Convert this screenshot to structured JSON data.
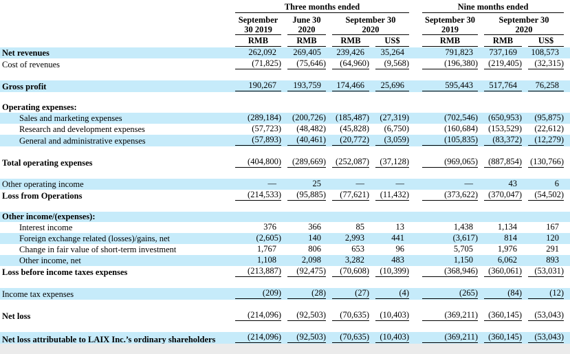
{
  "colors": {
    "row_highlight": "#c6ebfa",
    "rule": "#000000",
    "footer_strip": "#ebebeb",
    "text": "#000000"
  },
  "table": {
    "groups": [
      {
        "label": "Three months ended",
        "span": 4
      },
      {
        "label": "Nine months ended",
        "span": 3
      }
    ],
    "date_columns": [
      {
        "lines": [
          "September",
          "30 2019"
        ],
        "span": 1,
        "group": 0
      },
      {
        "lines": [
          "June 30",
          "2020"
        ],
        "span": 1,
        "group": 0
      },
      {
        "lines": [
          "September 30",
          "2020"
        ],
        "span": 2,
        "group": 0
      },
      {
        "lines": [
          "September 30",
          "2019"
        ],
        "span": 1,
        "group": 1
      },
      {
        "lines": [
          "September 30",
          "2020"
        ],
        "span": 2,
        "group": 1
      }
    ],
    "unit_row": [
      "RMB",
      "RMB",
      "RMB",
      "US$",
      "RMB",
      "RMB",
      "US$"
    ],
    "rows": [
      {
        "label": "Net revenues",
        "bold": true,
        "indent": false,
        "highlight": true,
        "underline": "none",
        "values": [
          "262,092",
          "269,405",
          "239,426",
          "35,264",
          "791,823",
          "737,169",
          "108,573"
        ]
      },
      {
        "label": "Cost of revenues",
        "bold": false,
        "indent": false,
        "highlight": false,
        "underline": "single",
        "values": [
          "(71,825)",
          "(75,646)",
          "(64,960)",
          "(9,568)",
          "(196,380)",
          "(219,405)",
          "(32,315)"
        ]
      },
      {
        "spacer": true
      },
      {
        "label": "Gross profit",
        "bold": true,
        "indent": false,
        "highlight": true,
        "underline": "single",
        "values": [
          "190,267",
          "193,759",
          "174,466",
          "25,696",
          "595,443",
          "517,764",
          "76,258"
        ]
      },
      {
        "spacer": true
      },
      {
        "label": "Operating expenses:",
        "bold": true,
        "indent": false,
        "highlight": false,
        "underline": "none",
        "values": null
      },
      {
        "label": "Sales and marketing expenses",
        "bold": false,
        "indent": true,
        "highlight": true,
        "underline": "none",
        "values": [
          "(289,184)",
          "(200,726)",
          "(185,487)",
          "(27,319)",
          "(702,546)",
          "(650,953)",
          "(95,875)"
        ]
      },
      {
        "label": "Research and development expenses",
        "bold": false,
        "indent": true,
        "highlight": false,
        "underline": "none",
        "values": [
          "(57,723)",
          "(48,482)",
          "(45,828)",
          "(6,750)",
          "(160,684)",
          "(153,529)",
          "(22,612)"
        ]
      },
      {
        "label": "General and administrative expenses",
        "bold": false,
        "indent": true,
        "highlight": true,
        "underline": "single",
        "values": [
          "(57,893)",
          "(40,461)",
          "(20,772)",
          "(3,059)",
          "(105,835)",
          "(83,372)",
          "(12,279)"
        ]
      },
      {
        "spacer": true
      },
      {
        "label": "Total operating expenses",
        "bold": true,
        "indent": false,
        "highlight": false,
        "underline": "single",
        "values": [
          "(404,800)",
          "(289,669)",
          "(252,087)",
          "(37,128)",
          "(969,065)",
          "(887,854)",
          "(130,766)"
        ]
      },
      {
        "spacer": true
      },
      {
        "label": "Other operating income",
        "bold": false,
        "indent": false,
        "highlight": true,
        "underline": "none",
        "values": [
          "—",
          "25",
          "—",
          "—",
          "—",
          "43",
          "6"
        ]
      },
      {
        "label": "Loss from Operations",
        "bold": true,
        "indent": false,
        "highlight": false,
        "underline": "single",
        "values": [
          "(214,533)",
          "(95,885)",
          "(77,621)",
          "(11,432)",
          "(373,622)",
          "(370,047)",
          "(54,502)"
        ]
      },
      {
        "spacer": true
      },
      {
        "label": "Other income/(expenses):",
        "bold": true,
        "indent": false,
        "highlight": true,
        "underline": "none",
        "values": null
      },
      {
        "label": "Interest income",
        "bold": false,
        "indent": true,
        "highlight": false,
        "underline": "none",
        "values": [
          "376",
          "366",
          "85",
          "13",
          "1,438",
          "1,134",
          "167"
        ]
      },
      {
        "label": "Foreign exchange related (losses)/gains, net",
        "bold": false,
        "indent": true,
        "highlight": true,
        "underline": "none",
        "values": [
          "(2,605)",
          "140",
          "2,993",
          "441",
          "(3,617)",
          "814",
          "120"
        ]
      },
      {
        "label": "Change in fair value of short-term investment",
        "bold": false,
        "indent": true,
        "highlight": false,
        "underline": "none",
        "values": [
          "1,767",
          "806",
          "653",
          "96",
          "5,705",
          "1,976",
          "291"
        ]
      },
      {
        "label": "Other income, net",
        "bold": false,
        "indent": true,
        "highlight": true,
        "underline": "none",
        "values": [
          "1,108",
          "2,098",
          "3,282",
          "483",
          "1,150",
          "6,062",
          "893"
        ]
      },
      {
        "label": "Loss before income taxes expenses",
        "bold": true,
        "indent": false,
        "highlight": false,
        "underline": "single",
        "values": [
          "(213,887)",
          "(92,475)",
          "(70,608)",
          "(10,399)",
          "(368,946)",
          "(360,061)",
          "(53,031)"
        ]
      },
      {
        "spacer": true
      },
      {
        "label": "Income tax expenses",
        "bold": false,
        "indent": false,
        "highlight": true,
        "underline": "single",
        "values": [
          "(209)",
          "(28)",
          "(27)",
          "(4)",
          "(265)",
          "(84)",
          "(12)"
        ]
      },
      {
        "spacer": true
      },
      {
        "label": "Net loss",
        "bold": true,
        "indent": false,
        "highlight": false,
        "underline": "single",
        "values": [
          "(214,096)",
          "(92,503)",
          "(70,635)",
          "(10,403)",
          "(369,211)",
          "(360,145)",
          "(53,043)"
        ]
      },
      {
        "spacer": true
      },
      {
        "label": "Net loss attributable to LAIX Inc.’s ordinary shareholders",
        "bold": true,
        "indent": false,
        "highlight": true,
        "underline": "double",
        "values": [
          "(214,096)",
          "(92,503)",
          "(70,635)",
          "(10,403)",
          "(369,211)",
          "(360,145)",
          "(53,043)"
        ]
      }
    ]
  }
}
